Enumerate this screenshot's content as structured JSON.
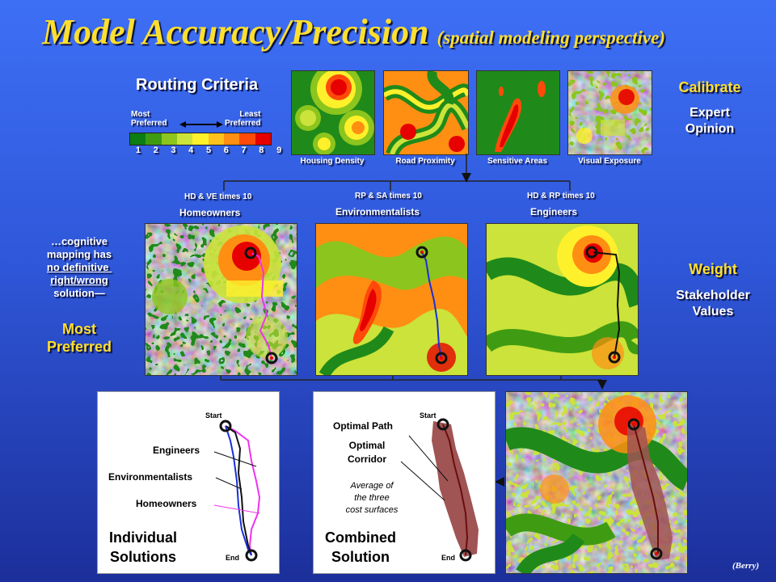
{
  "title": {
    "main": "Model Accuracy/Precision",
    "sub": "(spatial modeling perspective)"
  },
  "routing": {
    "title": "Routing Criteria",
    "most": "Most\nPreferred",
    "least": "Least\nPreferred",
    "scale": [
      "1",
      "2",
      "3",
      "4",
      "5",
      "6",
      "7",
      "8",
      "9"
    ],
    "scale_colors": [
      "#0b7d12",
      "#3f9c12",
      "#8cc51d",
      "#cbe33a",
      "#fff02c",
      "#ffc21c",
      "#ff8f12",
      "#ff4a0a",
      "#e60000"
    ]
  },
  "criteria": [
    "Housing Density",
    "Road Proximity",
    "Sensitive Areas",
    "Visual Exposure"
  ],
  "calibrate": {
    "title": "Calibrate",
    "sub": "Expert\nOpinion"
  },
  "groups": [
    {
      "formula": "HD & VE times 10",
      "name": "Homeowners"
    },
    {
      "formula": "RP & SA times 10",
      "name": "Environmentalists"
    },
    {
      "formula": "HD & RP times 10",
      "name": "Engineers"
    }
  ],
  "weight": {
    "title": "Weight",
    "sub": "Stakeholder\nValues"
  },
  "cognitive": {
    "line1": "…cognitive\nmapping has",
    "line2": "no definitive \nright/wrong",
    "line3": "solution—",
    "most": "Most\nPreferred"
  },
  "individual": {
    "start": "Start",
    "end": "End",
    "engineers": "Engineers",
    "environmentalists": "Environmentalists",
    "homeowners": "Homeowners",
    "caption": "Individual\nSolutions"
  },
  "combined": {
    "start": "Start",
    "end": "End",
    "optimal_path": "Optimal Path",
    "optimal_corridor": "Optimal\nCorridor",
    "average": "Average of\nthe three\ncost surfaces",
    "caption": "Combined\nSolution"
  },
  "credit": "(Berry)",
  "colors": {
    "title": "#ffdf2e",
    "engineers": "#000000",
    "environmentalists": "#1b2fd8",
    "homeowners": "#ee33ee",
    "corridor": "#9a3b3b"
  }
}
